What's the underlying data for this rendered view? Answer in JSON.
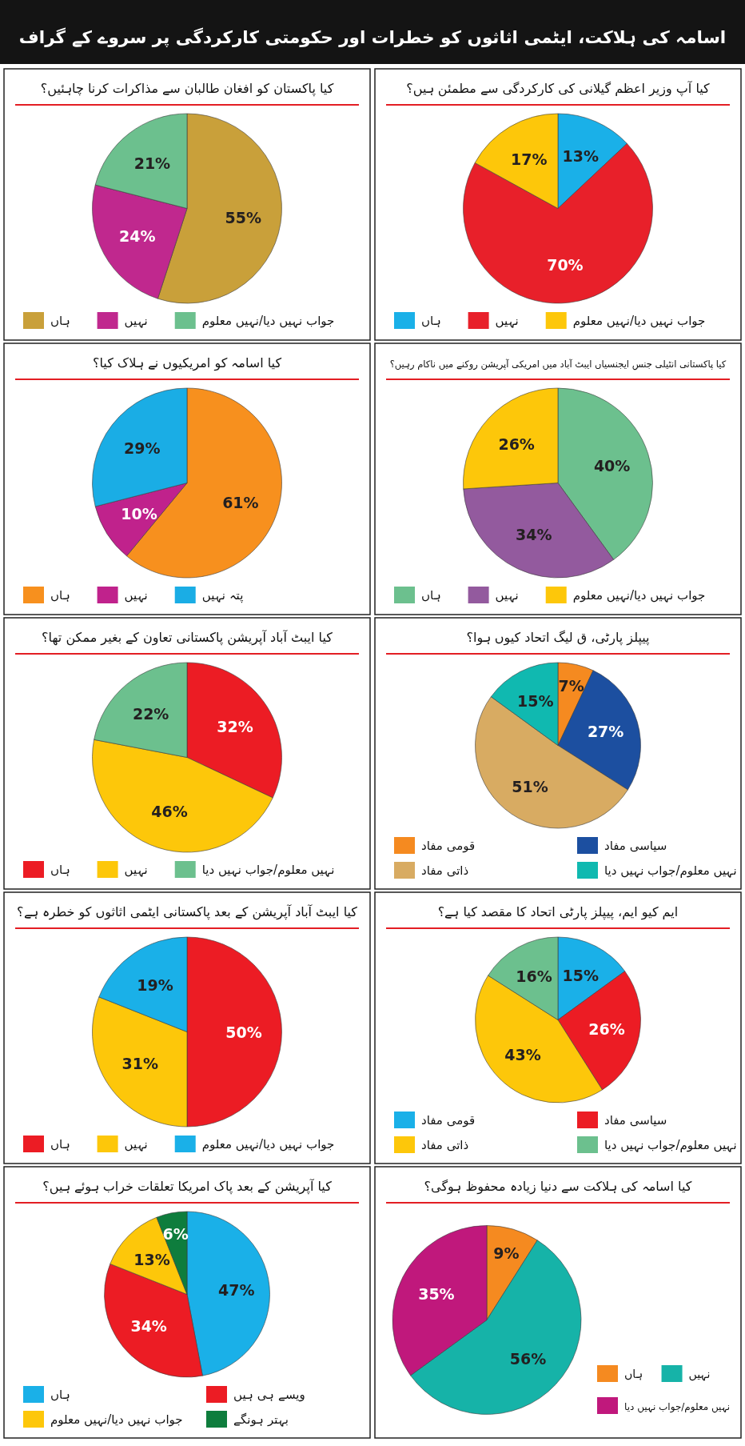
{
  "chart_data": [
    {
      "type": "other",
      "title": "اسامہ کی ہلاکت، ایٹمی اثاثوں کو خطرات اور حکومتی کارکردگی پر سروے کے گراف"
    },
    {
      "type": "pie",
      "title": "کیا پاکستان کو افغان طالبان سے مذاکرات کرنا چاہئیں؟",
      "categories": [
        "ہاں",
        "نہیں",
        "جواب نہیں دیا/نہیں معلوم"
      ],
      "values": [
        55,
        24,
        21
      ],
      "colors": [
        "#c9a03a",
        "#c0288e",
        "#6cc08e"
      ],
      "value_labels": [
        "55%",
        "24%",
        "21%"
      ],
      "legend": "bottom"
    },
    {
      "type": "pie",
      "title": "کیا آپ وزیر اعظم گیلانی کی کارکردگی سے مطمئن ہیں؟",
      "categories": [
        "ہاں",
        "نہیں",
        "جواب نہیں دیا/نہیں معلوم"
      ],
      "values": [
        13,
        70,
        17
      ],
      "colors": [
        "#1ab0e8",
        "#e8202a",
        "#fdc70a"
      ],
      "value_labels": [
        "13%",
        "70%",
        "17%"
      ],
      "legend": "bottom"
    },
    {
      "type": "pie",
      "title": "کیا اسامہ کو امریکیوں نے ہلاک کیا؟",
      "categories": [
        "ہاں",
        "نہیں",
        "پتہ نہیں"
      ],
      "values": [
        61,
        10,
        29
      ],
      "colors": [
        "#f7901e",
        "#c0228c",
        "#1aade5"
      ],
      "value_labels": [
        "61%",
        "10%",
        "29%"
      ],
      "legend": "bottom"
    },
    {
      "type": "pie",
      "title": "کیا پاکستانی انٹیلی جنس ایجنسیاں ایبٹ آباد میں امریکی آپریشن روکنے میں ناکام رہیں؟",
      "categories": [
        "ہاں",
        "نہیں",
        "جواب نہیں دیا/نہیں معلوم"
      ],
      "values": [
        40,
        34,
        26
      ],
      "colors": [
        "#6cc08e",
        "#935a9e",
        "#fdc70a"
      ],
      "value_labels": [
        "40%",
        "34%",
        "26%"
      ],
      "legend": "bottom"
    },
    {
      "type": "pie",
      "title": "کیا ایبٹ آباد آپریشن پاکستانی تعاون کے بغیر ممکن تھا؟",
      "categories": [
        "ہاں",
        "نہیں",
        "نہیں معلوم/جواب نہیں دیا"
      ],
      "values": [
        32,
        46,
        22
      ],
      "colors": [
        "#ec1c24",
        "#fdc70a",
        "#6cc08e"
      ],
      "value_labels": [
        "32%",
        "46%",
        "22%"
      ],
      "legend": "bottom"
    },
    {
      "type": "pie",
      "title": "پیپلز پارٹی، ق لیگ اتحاد کیوں ہوا؟",
      "categories": [
        "قومی مفاد",
        "سیاسی مفاد",
        "ذاتی مفاد",
        "نہیں معلوم/جواب نہیں دیا"
      ],
      "values": [
        7,
        27,
        51,
        15
      ],
      "colors": [
        "#f58a20",
        "#1c4fa0",
        "#d8ab62",
        "#10b9b0"
      ],
      "value_labels": [
        "7%",
        "27%",
        "51%",
        "15%"
      ],
      "legend": "bottom"
    },
    {
      "type": "pie",
      "title": "کیا ایبٹ آباد آپریشن کے بعد پاکستانی ایٹمی اثاثوں کو خطرہ ہے؟",
      "categories": [
        "ہاں",
        "نہیں",
        "جواب نہیں دیا/نہیں معلوم"
      ],
      "values": [
        50,
        31,
        19
      ],
      "colors": [
        "#ec1c24",
        "#fdc70a",
        "#1ab0e8"
      ],
      "value_labels": [
        "50%",
        "31%",
        "19%"
      ],
      "legend": "bottom"
    },
    {
      "type": "pie",
      "title": "ایم کیو ایم، پیپلز پارٹی اتحاد کا مقصد کیا ہے؟",
      "categories": [
        "قومی مفاد",
        "سیاسی مفاد",
        "ذاتی مفاد",
        "نہیں معلوم/جواب نہیں دیا"
      ],
      "values": [
        15,
        26,
        43,
        16
      ],
      "colors": [
        "#1ab0e8",
        "#ec1c24",
        "#fdc70a",
        "#6cc08e"
      ],
      "value_labels": [
        "15%",
        "26%",
        "43%",
        "16%"
      ],
      "legend": "bottom"
    },
    {
      "type": "pie",
      "title": "کیا آپریشن کے بعد پاک امریکا تعلقات خراب ہوئے ہیں؟",
      "categories": [
        "ہاں",
        "ویسے ہی ہیں",
        "جواب نہیں دیا/نہیں معلوم",
        "بہتر ہونگے"
      ],
      "values": [
        47,
        34,
        13,
        6
      ],
      "colors": [
        "#1ab0e8",
        "#ec1c24",
        "#fdc70a",
        "#0e7d3d"
      ],
      "value_labels": [
        "47%",
        "34%",
        "13%",
        "6%"
      ],
      "legend": "bottom"
    },
    {
      "type": "pie",
      "title": "کیا اسامہ کی ہلاکت سے دنیا زیادہ محفوظ ہوگی؟",
      "categories": [
        "ہاں",
        "نہیں",
        "نہیں معلوم/جواب نہیں دیا"
      ],
      "values": [
        9,
        56,
        35
      ],
      "colors": [
        "#f58a20",
        "#16b3a8",
        "#c0187c"
      ],
      "value_labels": [
        "9%",
        "56%",
        "35%"
      ],
      "legend": "right"
    }
  ]
}
